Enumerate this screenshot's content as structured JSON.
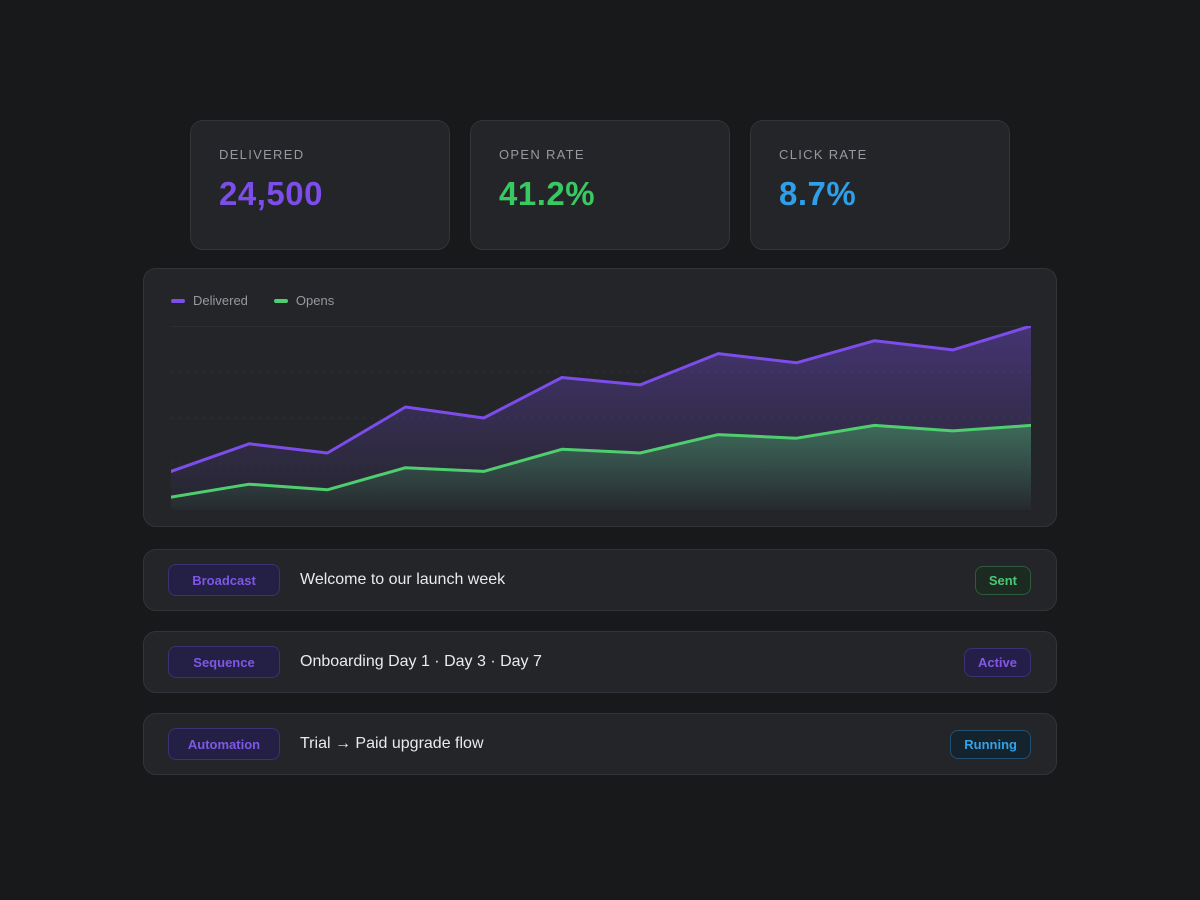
{
  "page": {
    "background": "#18191a",
    "card_background": "#232528"
  },
  "stats": [
    {
      "label": "DELIVERED",
      "value": "24,500",
      "color": "#7c4dea"
    },
    {
      "label": "OPEN RATE",
      "value": "41.2%",
      "color": "#38c961"
    },
    {
      "label": "CLICK RATE",
      "value": "8.7%",
      "color": "#2e9fe8"
    }
  ],
  "chart_data": {
    "type": "area",
    "x": [
      1,
      2,
      3,
      4,
      5,
      6,
      7,
      8,
      9,
      10,
      11,
      12
    ],
    "series": [
      {
        "name": "Delivered",
        "color": "#7c4dea",
        "values": [
          21,
          36,
          31,
          56,
          50,
          72,
          68,
          85,
          80,
          92,
          87,
          100
        ]
      },
      {
        "name": "Opens",
        "color": "#4ece6e",
        "values": [
          7,
          14,
          11,
          23,
          21,
          33,
          31,
          41,
          39,
          46,
          43,
          46
        ]
      }
    ],
    "title": "",
    "xlabel": "",
    "ylabel": "",
    "ylim": [
      0,
      100
    ],
    "gridline_values": [
      100,
      75,
      50,
      25
    ],
    "grid": "horizontal-faint-dashed",
    "legend_position": "top-left",
    "axis_tick_labels_visible": false
  },
  "rows": [
    {
      "tag": "Broadcast",
      "title": "Welcome to our launch week",
      "badge": "Sent",
      "badge_style": "green"
    },
    {
      "tag": "Sequence",
      "title": "Onboarding Day 1 · Day 3 · Day 7",
      "badge": "Active",
      "badge_style": "purple"
    },
    {
      "tag": "Automation",
      "title": "Trial → Paid upgrade flow",
      "badge": "Running",
      "badge_style": "blue"
    }
  ]
}
